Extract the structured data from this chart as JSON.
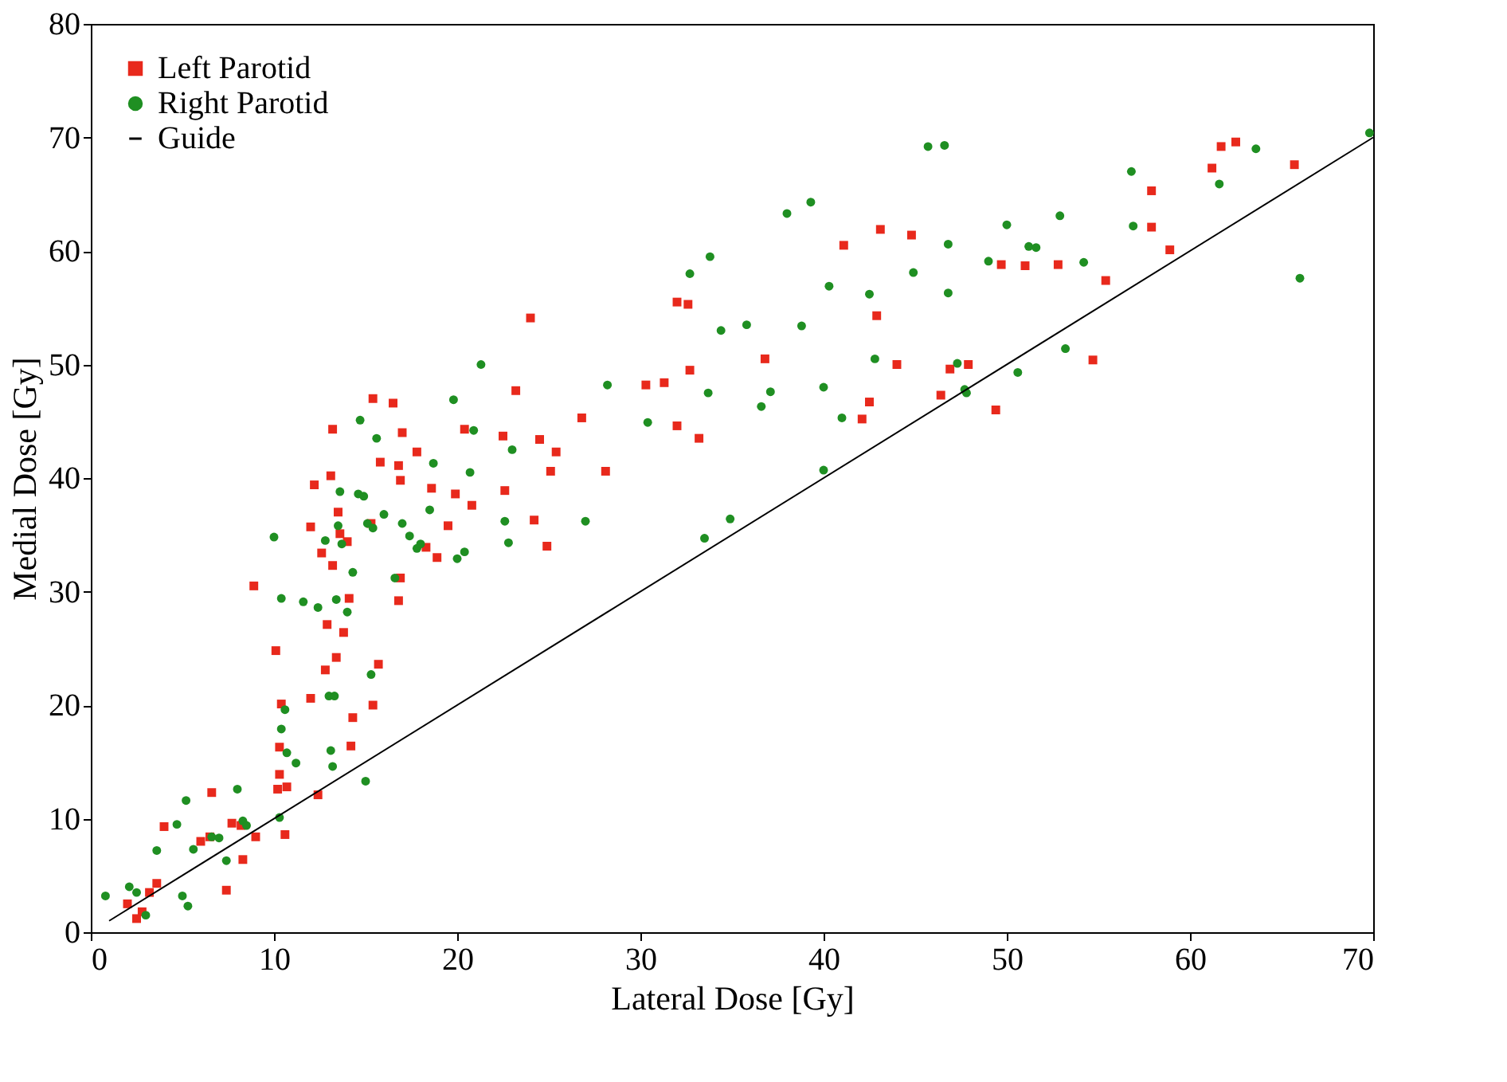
{
  "chart_data": {
    "type": "scatter",
    "xlabel": "Lateral Dose [Gy]",
    "ylabel": "Medial Dose [Gy]",
    "xlim": [
      0,
      70
    ],
    "ylim": [
      0,
      80
    ],
    "xticks": [
      0,
      10,
      20,
      30,
      40,
      50,
      60,
      70
    ],
    "yticks": [
      0,
      10,
      20,
      30,
      40,
      50,
      60,
      70,
      80
    ],
    "grid": false,
    "legend": "top left",
    "series": [
      {
        "name": "Left Parotid",
        "color": "#e8291c",
        "marker": "square",
        "x": [
          2.0,
          2.5,
          2.8,
          3.2,
          3.6,
          4.0,
          6.6,
          6.0,
          6.5,
          7.4,
          7.7,
          8.3,
          8.2,
          9.0,
          8.9,
          10.1,
          10.2,
          10.3,
          10.4,
          10.3,
          10.6,
          10.7,
          12.0,
          12.2,
          12.0,
          12.4,
          12.6,
          12.8,
          12.9,
          13.1,
          13.2,
          13.2,
          13.4,
          13.5,
          13.6,
          13.8,
          14.0,
          14.1,
          14.2,
          14.3,
          15.3,
          15.4,
          15.4,
          15.7,
          15.8,
          16.5,
          16.8,
          16.9,
          16.9,
          16.8,
          17.0,
          17.8,
          18.3,
          18.6,
          18.9,
          19.5,
          19.9,
          20.4,
          20.8,
          22.5,
          22.6,
          23.2,
          24.0,
          24.2,
          24.5,
          24.9,
          25.1,
          25.4,
          26.8,
          28.1,
          30.3,
          31.3,
          32.0,
          32.0,
          32.6,
          32.7,
          33.2,
          36.8,
          41.1,
          42.1,
          42.5,
          42.9,
          43.1,
          44.0,
          44.8,
          46.4,
          46.9,
          47.9,
          49.4,
          49.7,
          51.0,
          52.8,
          54.7,
          55.4,
          57.9,
          57.9,
          58.9,
          61.2,
          61.7,
          62.5,
          65.7
        ],
        "values": [
          2.5,
          1.2,
          1.8,
          3.5,
          4.3,
          9.3,
          12.3,
          8.0,
          8.4,
          3.7,
          9.6,
          6.4,
          9.4,
          8.4,
          30.5,
          24.8,
          12.6,
          13.9,
          20.1,
          16.3,
          8.6,
          12.8,
          35.7,
          39.4,
          20.6,
          12.1,
          33.4,
          23.1,
          27.1,
          40.2,
          44.3,
          32.3,
          24.2,
          37.0,
          35.1,
          26.4,
          34.4,
          29.4,
          16.4,
          18.9,
          36.0,
          47.0,
          20.0,
          23.6,
          41.4,
          46.6,
          41.1,
          39.8,
          31.2,
          29.2,
          44.0,
          42.3,
          33.9,
          39.1,
          33.0,
          35.8,
          38.6,
          44.3,
          37.6,
          43.7,
          38.9,
          47.7,
          54.1,
          36.3,
          43.4,
          34.0,
          40.6,
          42.3,
          45.3,
          40.6,
          48.2,
          48.4,
          55.5,
          44.6,
          55.3,
          49.5,
          43.5,
          50.5,
          60.5,
          45.2,
          46.7,
          54.3,
          61.9,
          50.0,
          61.4,
          47.3,
          49.6,
          50.0,
          46.0,
          58.8,
          58.7,
          58.8,
          50.4,
          57.4,
          65.3,
          62.1,
          60.1,
          67.3,
          69.2,
          69.6,
          67.6
        ]
      },
      {
        "name": "Right Parotid",
        "color": "#1f8f22",
        "marker": "circle",
        "x": [
          0.8,
          2.1,
          2.5,
          3.0,
          3.6,
          4.7,
          5.0,
          5.2,
          5.3,
          5.6,
          6.6,
          7.0,
          7.4,
          8.0,
          8.3,
          8.5,
          10.0,
          10.3,
          10.4,
          10.4,
          10.6,
          10.7,
          11.2,
          11.6,
          12.4,
          12.8,
          13.0,
          13.1,
          13.2,
          13.3,
          13.4,
          13.5,
          13.6,
          13.7,
          14.0,
          14.3,
          14.6,
          14.7,
          14.9,
          15.0,
          15.1,
          15.3,
          15.4,
          15.6,
          16.0,
          16.6,
          17.0,
          17.4,
          17.8,
          18.0,
          18.5,
          18.7,
          19.8,
          20.0,
          20.4,
          20.7,
          20.9,
          21.3,
          22.6,
          22.8,
          23.0,
          27.0,
          28.2,
          30.4,
          32.7,
          33.5,
          33.7,
          33.8,
          34.4,
          34.9,
          35.8,
          37.1,
          36.6,
          38.0,
          38.8,
          39.3,
          40.0,
          40.0,
          40.3,
          41.0,
          42.5,
          42.8,
          44.9,
          45.7,
          46.6,
          46.8,
          46.8,
          47.3,
          47.7,
          47.8,
          49.0,
          50.0,
          50.6,
          51.2,
          51.6,
          52.9,
          53.2,
          54.2,
          56.8,
          56.9,
          61.6,
          63.6,
          66.0,
          69.8
        ],
        "values": [
          3.2,
          4.0,
          3.5,
          1.5,
          7.2,
          9.5,
          3.2,
          11.6,
          2.3,
          7.3,
          8.4,
          8.3,
          6.3,
          12.6,
          9.8,
          9.4,
          34.8,
          10.1,
          17.9,
          29.4,
          19.6,
          15.8,
          14.9,
          29.1,
          28.6,
          34.5,
          20.8,
          16.0,
          14.6,
          20.8,
          29.3,
          35.8,
          38.8,
          34.2,
          28.2,
          31.7,
          38.6,
          45.1,
          38.4,
          13.3,
          36.0,
          22.7,
          35.6,
          43.5,
          36.8,
          31.2,
          36.0,
          34.9,
          33.8,
          34.2,
          37.2,
          41.3,
          46.9,
          32.9,
          33.5,
          40.5,
          44.2,
          50.0,
          36.2,
          34.3,
          42.5,
          36.2,
          48.2,
          44.9,
          58.0,
          34.7,
          47.5,
          59.5,
          53.0,
          36.4,
          53.5,
          47.6,
          46.3,
          63.3,
          53.4,
          64.3,
          40.7,
          48.0,
          56.9,
          45.3,
          56.2,
          50.5,
          58.1,
          69.2,
          69.3,
          60.6,
          56.3,
          50.1,
          47.8,
          47.5,
          59.1,
          62.3,
          49.3,
          60.4,
          60.3,
          63.1,
          51.4,
          59.0,
          67.0,
          62.2,
          65.9,
          69.0,
          57.6,
          70.4
        ]
      },
      {
        "name": "Guide",
        "color": "#000000",
        "type": "line",
        "line_style": "solid",
        "x": [
          1,
          70
        ],
        "values": [
          1,
          70
        ]
      }
    ]
  }
}
